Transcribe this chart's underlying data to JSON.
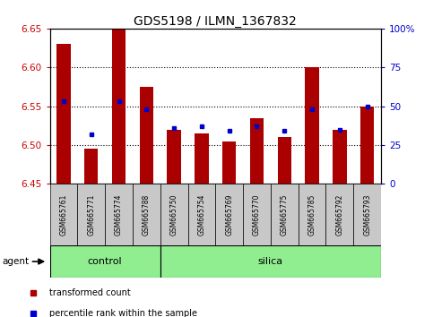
{
  "title": "GDS5198 / ILMN_1367832",
  "samples": [
    "GSM665761",
    "GSM665771",
    "GSM665774",
    "GSM665788",
    "GSM665750",
    "GSM665754",
    "GSM665769",
    "GSM665770",
    "GSM665775",
    "GSM665785",
    "GSM665792",
    "GSM665793"
  ],
  "red_values": [
    6.63,
    6.495,
    6.65,
    6.575,
    6.52,
    6.515,
    6.505,
    6.535,
    6.51,
    6.6,
    6.52,
    6.55
  ],
  "blue_values_pct": [
    53,
    32,
    53,
    48,
    36,
    37,
    34,
    37,
    34,
    48,
    35,
    50
  ],
  "ylim_left": [
    6.45,
    6.65
  ],
  "ylim_right": [
    0,
    100
  ],
  "yticks_left": [
    6.45,
    6.5,
    6.55,
    6.6,
    6.65
  ],
  "yticks_right": [
    0,
    25,
    50,
    75,
    100
  ],
  "ytick_labels_right": [
    "0",
    "25",
    "50",
    "75",
    "100%"
  ],
  "n_control": 4,
  "n_silica": 8,
  "bar_color": "#AA0000",
  "dot_color": "#0000CC",
  "bar_bottom": 6.45,
  "bar_width": 0.5,
  "left_tick_color": "#CC0000",
  "right_tick_color": "#0000CC",
  "control_bg": "#90EE90",
  "silica_bg": "#90EE90",
  "sample_bg": "#C8C8C8",
  "legend_red_label": "transformed count",
  "legend_blue_label": "percentile rank within the sample",
  "agent_label": "agent",
  "control_label": "control",
  "silica_label": "silica",
  "figsize": [
    4.83,
    3.54
  ],
  "dpi": 100
}
